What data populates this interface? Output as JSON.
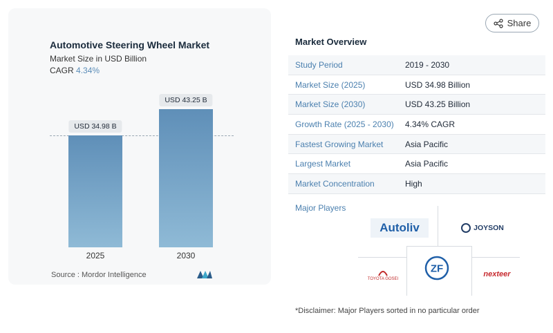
{
  "chart": {
    "title": "Automotive Steering Wheel Market",
    "subtitle": "Market Size in USD Billion",
    "cagr_label": "CAGR",
    "cagr_value": "4.34%",
    "source": "Source :  Mordor Intelligence"
  },
  "chart_data": {
    "type": "bar",
    "title": "Automotive Steering Wheel Market",
    "ylabel": "Market Size in USD Billion",
    "categories": [
      "2025",
      "2030"
    ],
    "values": [
      34.98,
      43.25
    ],
    "data_labels": [
      "USD 34.98 B",
      "USD 43.25 B"
    ],
    "ylim": [
      0,
      50
    ],
    "grid": false,
    "colors": [
      "#5f8fb8",
      "#8fbad6"
    ]
  },
  "share": {
    "label": "Share"
  },
  "overview": {
    "title": "Market Overview",
    "rows": [
      {
        "k": "Study Period",
        "v": "2019 - 2030"
      },
      {
        "k": "Market Size (2025)",
        "v": "USD 34.98 Billion"
      },
      {
        "k": "Market Size (2030)",
        "v": "USD 43.25 Billion"
      },
      {
        "k": "Growth Rate (2025 - 2030)",
        "v": "4.34% CAGR"
      },
      {
        "k": "Fastest Growing Market",
        "v": "Asia Pacific"
      },
      {
        "k": "Largest Market",
        "v": "Asia Pacific"
      },
      {
        "k": "Market Concentration",
        "v": "High"
      }
    ]
  },
  "players": {
    "label": "Major Players",
    "logos": [
      "Autoliv",
      "JOYSON",
      "ZF",
      "TOYOTA GOSEI",
      "nexteer"
    ]
  },
  "disclaimer": "*Disclaimer: Major Players sorted in no particular order",
  "colors": {
    "accent": "#4a7fae",
    "bar_top": "#5f8fb8",
    "bar_bottom": "#8fbad6"
  }
}
